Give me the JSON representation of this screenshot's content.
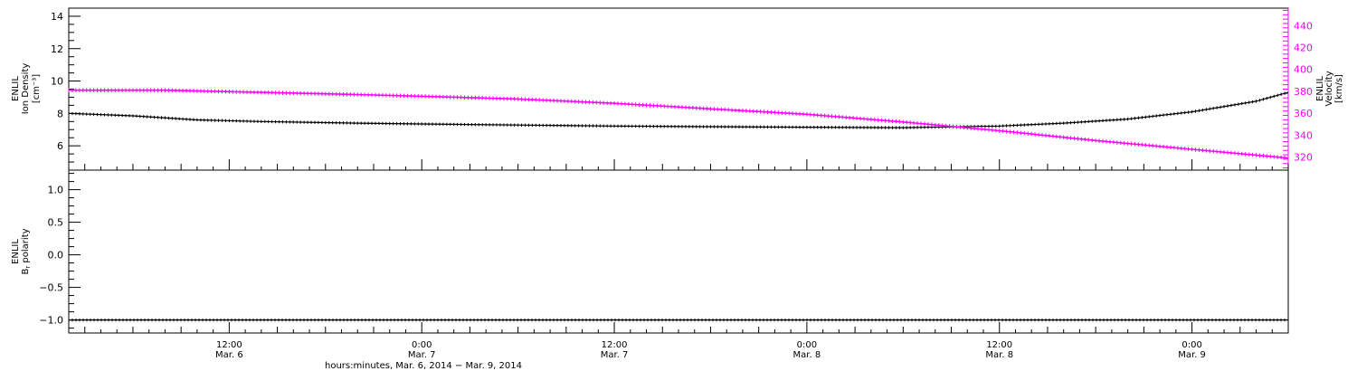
{
  "chart_data": [
    {
      "type": "line",
      "panel": "top",
      "time_range": [
        "2014-03-06T02:00",
        "2014-03-09T06:00"
      ],
      "ylabel": [
        "ENLIL",
        "Ion Density",
        "[cm⁻³]"
      ],
      "ylim": [
        4.5,
        14.5
      ],
      "yticks": [
        6,
        8,
        10,
        12,
        14
      ],
      "y2label": [
        "ENLIL",
        "Velocity",
        "[km/s]"
      ],
      "y2lim": [
        308,
        456
      ],
      "y2ticks": [
        320,
        340,
        360,
        380,
        400,
        420,
        440
      ],
      "series": [
        {
          "axis": "left",
          "color": "#000000",
          "points": [
            [
              "2014-03-06T02:00",
              8.0
            ],
            [
              "2014-03-06T06:00",
              7.85
            ],
            [
              "2014-03-06T10:00",
              7.6
            ],
            [
              "2014-03-06T14:00",
              7.5
            ],
            [
              "2014-03-06T20:00",
              7.4
            ],
            [
              "2014-03-07T00:00",
              7.35
            ],
            [
              "2014-03-07T06:00",
              7.28
            ],
            [
              "2014-03-07T12:00",
              7.22
            ],
            [
              "2014-03-07T18:00",
              7.18
            ],
            [
              "2014-03-08T00:00",
              7.15
            ],
            [
              "2014-03-08T06:00",
              7.12
            ],
            [
              "2014-03-08T12:00",
              7.22
            ],
            [
              "2014-03-08T16:00",
              7.4
            ],
            [
              "2014-03-08T20:00",
              7.65
            ],
            [
              "2014-03-09T00:00",
              8.1
            ],
            [
              "2014-03-09T04:00",
              8.75
            ],
            [
              "2014-03-09T06:00",
              9.3
            ]
          ]
        },
        {
          "axis": "right",
          "color": "#ff00ff",
          "points": [
            [
              "2014-03-06T02:00",
              381
            ],
            [
              "2014-03-06T08:00",
              381
            ],
            [
              "2014-03-06T14:00",
              379
            ],
            [
              "2014-03-06T20:00",
              377
            ],
            [
              "2014-03-07T00:00",
              375.5
            ],
            [
              "2014-03-07T06:00",
              373
            ],
            [
              "2014-03-07T12:00",
              369
            ],
            [
              "2014-03-07T18:00",
              364
            ],
            [
              "2014-03-08T00:00",
              359
            ],
            [
              "2014-03-08T06:00",
              352
            ],
            [
              "2014-03-08T12:00",
              344
            ],
            [
              "2014-03-08T18:00",
              335
            ],
            [
              "2014-03-09T00:00",
              327
            ],
            [
              "2014-03-09T06:00",
              319
            ]
          ]
        }
      ]
    },
    {
      "type": "line",
      "panel": "bottom",
      "time_range": [
        "2014-03-06T02:00",
        "2014-03-09T06:00"
      ],
      "ylabel": [
        "ENLIL",
        "B",
        "r",
        " polarity"
      ],
      "ylim": [
        -1.2,
        1.3
      ],
      "yticks": [
        -1.0,
        -0.5,
        0.0,
        0.5,
        1.0
      ],
      "ytick_labels": [
        "−1.0",
        "−0.5",
        "0.0",
        "0.5",
        "1.0"
      ],
      "series": [
        {
          "axis": "left",
          "color": "#000000",
          "points": [
            [
              "2014-03-06T02:00",
              -1.0
            ],
            [
              "2014-03-09T06:00",
              -1.0
            ]
          ]
        }
      ]
    }
  ],
  "x_ticks": [
    {
      "time": "2014-03-06T12:00",
      "label": "12:00",
      "sub": "Mar. 6"
    },
    {
      "time": "2014-03-07T00:00",
      "label": "0:00",
      "sub": "Mar. 7"
    },
    {
      "time": "2014-03-07T12:00",
      "label": "12:00",
      "sub": "Mar. 7"
    },
    {
      "time": "2014-03-08T00:00",
      "label": "0:00",
      "sub": "Mar. 8"
    },
    {
      "time": "2014-03-08T12:00",
      "label": "12:00",
      "sub": "Mar. 8"
    },
    {
      "time": "2014-03-09T00:00",
      "label": "0:00",
      "sub": "Mar. 9"
    }
  ],
  "x_axis_title": "hours:minutes, Mar.  6, 2014 − Mar.  9, 2014",
  "colors": {
    "axes": "#000000",
    "velocity": "#ff00ff",
    "density": "#000000"
  }
}
